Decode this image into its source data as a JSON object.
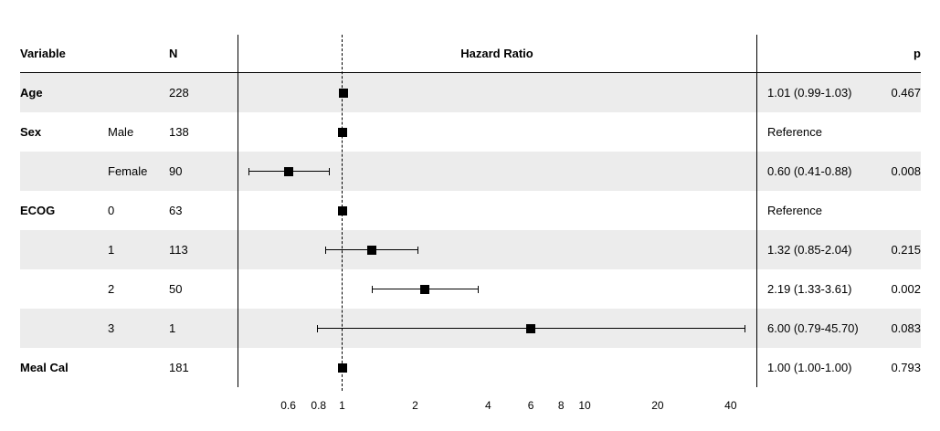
{
  "header": {
    "variable": "Variable",
    "n": "N",
    "hazard_ratio": "Hazard Ratio",
    "p": "p"
  },
  "colors": {
    "band_shaded": "#ececec",
    "band_plain": "#ffffff",
    "line": "#000000",
    "marker": "#000000",
    "text": "#000000"
  },
  "chart_data": {
    "type": "forest",
    "title": "Hazard Ratio",
    "x_scale": "log",
    "x_ticks": [
      0.6,
      0.8,
      1,
      2,
      4,
      6,
      8,
      10,
      20,
      40
    ],
    "reference_line": 1,
    "xlim": [
      0.55,
      48
    ],
    "grid": false,
    "rows": [
      {
        "variable": "Age",
        "level": "",
        "n": "228",
        "hr": 1.01,
        "ci_low": 0.99,
        "ci_high": 1.03,
        "estimate_label": "1.01 (0.99-1.03)",
        "p": "0.467",
        "shaded": true
      },
      {
        "variable": "Sex",
        "level": "Male",
        "n": "138",
        "hr": 1.0,
        "ci_low": null,
        "ci_high": null,
        "estimate_label": "Reference",
        "p": "",
        "shaded": false
      },
      {
        "variable": "",
        "level": "Female",
        "n": "90",
        "hr": 0.6,
        "ci_low": 0.41,
        "ci_high": 0.88,
        "estimate_label": "0.60 (0.41-0.88)",
        "p": "0.008",
        "shaded": true
      },
      {
        "variable": "ECOG",
        "level": "0",
        "n": "63",
        "hr": 1.0,
        "ci_low": null,
        "ci_high": null,
        "estimate_label": "Reference",
        "p": "",
        "shaded": false
      },
      {
        "variable": "",
        "level": "1",
        "n": "113",
        "hr": 1.32,
        "ci_low": 0.85,
        "ci_high": 2.04,
        "estimate_label": "1.32 (0.85-2.04)",
        "p": "0.215",
        "shaded": true
      },
      {
        "variable": "",
        "level": "2",
        "n": "50",
        "hr": 2.19,
        "ci_low": 1.33,
        "ci_high": 3.61,
        "estimate_label": "2.19 (1.33-3.61)",
        "p": "0.002",
        "shaded": false
      },
      {
        "variable": "",
        "level": "3",
        "n": "1",
        "hr": 6.0,
        "ci_low": 0.79,
        "ci_high": 45.7,
        "estimate_label": "6.00 (0.79-45.70)",
        "p": "0.083",
        "shaded": true
      },
      {
        "variable": "Meal Cal",
        "level": "",
        "n": "181",
        "hr": 1.0,
        "ci_low": 1.0,
        "ci_high": 1.0,
        "estimate_label": "1.00 (1.00-1.00)",
        "p": "0.793",
        "shaded": false
      }
    ]
  }
}
